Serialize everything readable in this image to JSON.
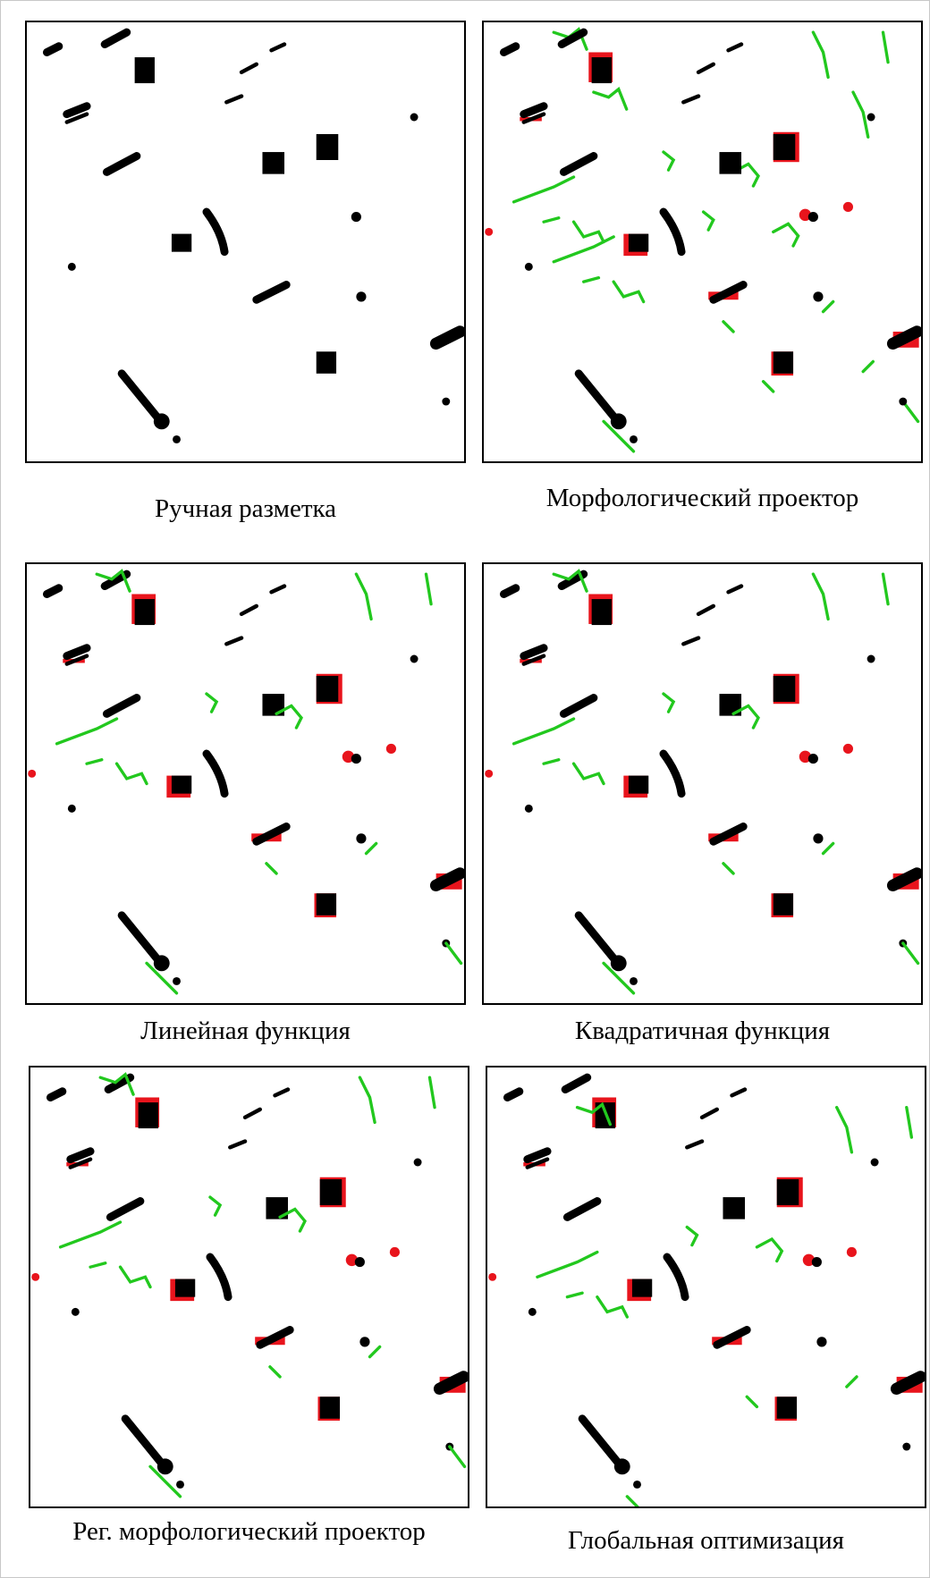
{
  "panels": [
    {
      "caption": "Ручная разметка"
    },
    {
      "caption": "Морфологический проектор"
    },
    {
      "caption": "Линейная функция"
    },
    {
      "caption": "Квадратичная функция"
    },
    {
      "caption": "Рег. морфологический проектор"
    },
    {
      "caption": "Глобальная оптимизация"
    }
  ]
}
